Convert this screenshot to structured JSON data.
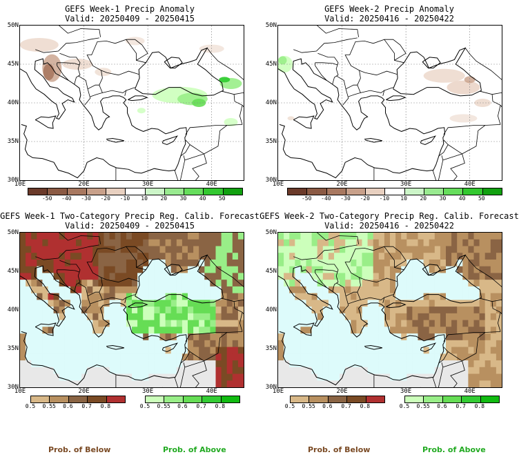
{
  "panels": {
    "w1_anom": {
      "title": "GEFS Week-1 Precip Anomaly",
      "valid": "Valid: 20250409 - 20250415"
    },
    "w2_anom": {
      "title": "GEFS Week-2 Precip Anomaly",
      "valid": "Valid: 20250416 - 20250422"
    },
    "w1_prob": {
      "title": "GEFS Week-1 Two-Category Precip Reg. Calib. Forecast",
      "valid": "Valid: 20250409 - 20250415"
    },
    "w2_prob": {
      "title": "GEFS Week-2 Two-Category Precip Reg. Calib. Forecast",
      "valid": "Valid: 20250416 - 20250422"
    }
  },
  "axes": {
    "lat_labels": [
      "50N",
      "45N",
      "40N",
      "35N",
      "30N"
    ],
    "lon_labels": [
      "10E",
      "20E",
      "30E",
      "40E"
    ]
  },
  "anomaly_colorbar": {
    "colors": [
      "#6b3a2a",
      "#8b5a44",
      "#a87860",
      "#c8a08a",
      "#e8d0c0",
      "#ffffff",
      "#ccf5c8",
      "#99ea90",
      "#66dd5c",
      "#33c830",
      "#11a010"
    ],
    "labels": [
      "-50",
      "-40",
      "-30",
      "-20",
      "-10",
      "10",
      "20",
      "30",
      "40",
      "50"
    ]
  },
  "below_colorbar": {
    "colors": [
      "#d8b888",
      "#b89060",
      "#8a6444",
      "#7a4a24",
      "#b03030"
    ],
    "labels": [
      "0.5",
      "0.55",
      "0.6",
      "0.7",
      "0.8"
    ]
  },
  "above_colorbar": {
    "colors": [
      "#ccffbb",
      "#99ee88",
      "#66dd55",
      "#33cc33",
      "#11bb11"
    ],
    "labels": [
      "0.5",
      "0.55",
      "0.6",
      "0.7",
      "0.8"
    ]
  },
  "footer": {
    "below_label": "Prob. of Below",
    "above_label": "Prob. of Above",
    "below_color": "#7a4a24",
    "above_color": "#22aa22"
  },
  "colors": {
    "sea": "#ddfbfb",
    "land_gray": "#e8e8e8"
  }
}
